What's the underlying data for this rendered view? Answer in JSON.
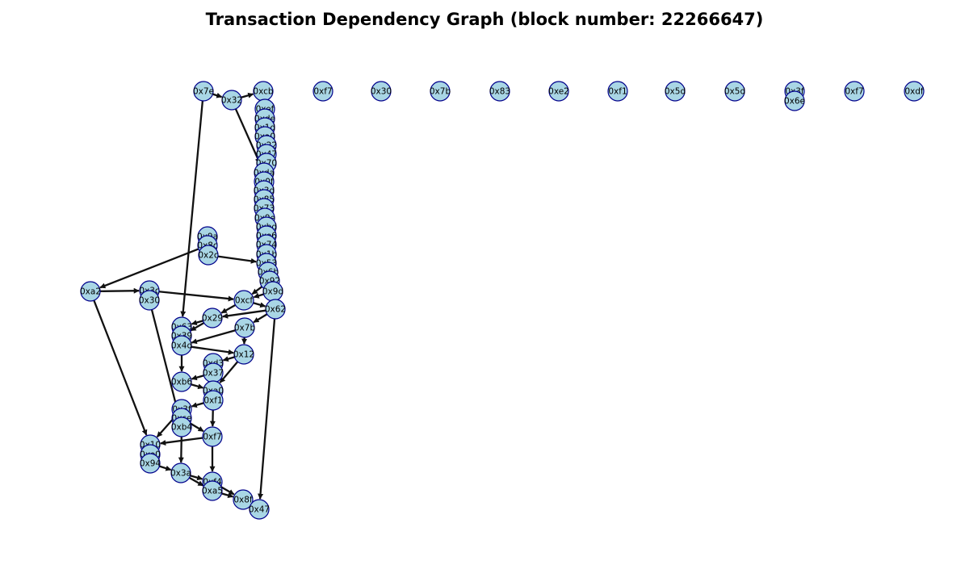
{
  "title": "Transaction Dependency Graph (block number: 22266647)",
  "colors": {
    "node_fill": "#a9d6e5",
    "node_stroke": "#00008b",
    "edge": "#111111",
    "background": "#ffffff"
  },
  "nodes": [
    {
      "id": "n1",
      "label": "0x7e"
    },
    {
      "id": "n2",
      "label": "0x32"
    },
    {
      "id": "n3",
      "label": "0xcb"
    },
    {
      "id": "n4",
      "label": "0xf7"
    },
    {
      "id": "n5",
      "label": "0x30"
    },
    {
      "id": "n6",
      "label": "0x7b"
    },
    {
      "id": "n7",
      "label": "0x83"
    },
    {
      "id": "n8",
      "label": "0xe2"
    },
    {
      "id": "n9",
      "label": "0xf1"
    },
    {
      "id": "n10",
      "label": "0x5d"
    },
    {
      "id": "n11",
      "label": "0x5d"
    },
    {
      "id": "n12",
      "label": "0x3f"
    },
    {
      "id": "n13",
      "label": "0x6e"
    },
    {
      "id": "n14",
      "label": "0xf7"
    },
    {
      "id": "n15",
      "label": "0xdf"
    },
    {
      "id": "c1",
      "label": "0xef"
    },
    {
      "id": "c2",
      "label": "0xde"
    },
    {
      "id": "c3",
      "label": "0x1d"
    },
    {
      "id": "c4",
      "label": "0xa0"
    },
    {
      "id": "c5",
      "label": "0x22"
    },
    {
      "id": "c6",
      "label": "0x47"
    },
    {
      "id": "c7",
      "label": "0x70"
    },
    {
      "id": "c8",
      "label": "0xda"
    },
    {
      "id": "c9",
      "label": "0x0f"
    },
    {
      "id": "c10",
      "label": "0x3d"
    },
    {
      "id": "c11",
      "label": "0x85"
    },
    {
      "id": "c12",
      "label": "0x73"
    },
    {
      "id": "c13",
      "label": "0x9e"
    },
    {
      "id": "c14",
      "label": "0xbd"
    },
    {
      "id": "c15",
      "label": "0xe6"
    },
    {
      "id": "c16",
      "label": "0x74"
    },
    {
      "id": "c17",
      "label": "0x1b"
    },
    {
      "id": "c18",
      "label": "0x53"
    },
    {
      "id": "c19",
      "label": "0x6b"
    },
    {
      "id": "c20",
      "label": "0x92"
    },
    {
      "id": "d1",
      "label": "0x9d"
    },
    {
      "id": "d2",
      "label": "0x62"
    },
    {
      "id": "e1",
      "label": "0x9a"
    },
    {
      "id": "e2",
      "label": "0x8c"
    },
    {
      "id": "e3",
      "label": "0x2c"
    },
    {
      "id": "f1",
      "label": "0xa2"
    },
    {
      "id": "f2",
      "label": "0x3c"
    },
    {
      "id": "f3",
      "label": "0x30"
    },
    {
      "id": "g1",
      "label": "0xcf"
    },
    {
      "id": "g2",
      "label": "0x29"
    },
    {
      "id": "g3",
      "label": "0x7b"
    },
    {
      "id": "h1",
      "label": "0x63"
    },
    {
      "id": "h2",
      "label": "0x39"
    },
    {
      "id": "h3",
      "label": "0x4d"
    },
    {
      "id": "i1",
      "label": "0x12"
    },
    {
      "id": "i2",
      "label": "0xd3"
    },
    {
      "id": "i3",
      "label": "0x37"
    },
    {
      "id": "j1",
      "label": "0xb6"
    },
    {
      "id": "j2",
      "label": "0xa0"
    },
    {
      "id": "j3",
      "label": "0xf1"
    },
    {
      "id": "k1",
      "label": "0x3f"
    },
    {
      "id": "k2",
      "label": "0xce"
    },
    {
      "id": "k3",
      "label": "0xb4"
    },
    {
      "id": "l1",
      "label": "0xf7"
    },
    {
      "id": "m1",
      "label": "0x10"
    },
    {
      "id": "m2",
      "label": "0xe0"
    },
    {
      "id": "m3",
      "label": "0x94"
    },
    {
      "id": "o1",
      "label": "0x3a"
    },
    {
      "id": "o2",
      "label": "0xf4"
    },
    {
      "id": "o3",
      "label": "0xa5"
    },
    {
      "id": "o4",
      "label": "0x8f"
    },
    {
      "id": "o5",
      "label": "0x47"
    }
  ],
  "edges": [
    [
      "n1",
      "n2"
    ],
    [
      "n2",
      "n3"
    ],
    [
      "n2",
      "c8"
    ],
    [
      "n1",
      "h1"
    ],
    [
      "e3",
      "c18"
    ],
    [
      "e2",
      "f1"
    ],
    [
      "f1",
      "f2"
    ],
    [
      "f1",
      "m1"
    ],
    [
      "f2",
      "g1"
    ],
    [
      "f3",
      "k3"
    ],
    [
      "c20",
      "g1"
    ],
    [
      "c20",
      "d1"
    ],
    [
      "g1",
      "d2"
    ],
    [
      "d1",
      "g1"
    ],
    [
      "d2",
      "g2"
    ],
    [
      "d2",
      "g3"
    ],
    [
      "d2",
      "o5"
    ],
    [
      "g1",
      "g2"
    ],
    [
      "g2",
      "h1"
    ],
    [
      "g2",
      "h2"
    ],
    [
      "g3",
      "i1"
    ],
    [
      "g3",
      "h3"
    ],
    [
      "h3",
      "i1"
    ],
    [
      "h3",
      "j1"
    ],
    [
      "i1",
      "i2"
    ],
    [
      "i1",
      "j2"
    ],
    [
      "i3",
      "j1"
    ],
    [
      "j1",
      "j2"
    ],
    [
      "j3",
      "k1"
    ],
    [
      "j3",
      "l1"
    ],
    [
      "k1",
      "m1"
    ],
    [
      "k2",
      "l1"
    ],
    [
      "k3",
      "o1"
    ],
    [
      "l1",
      "m1"
    ],
    [
      "l1",
      "o2"
    ],
    [
      "m3",
      "o1"
    ],
    [
      "o1",
      "o3"
    ],
    [
      "o1",
      "o2"
    ],
    [
      "o2",
      "o4"
    ],
    [
      "o3",
      "o4"
    ]
  ]
}
